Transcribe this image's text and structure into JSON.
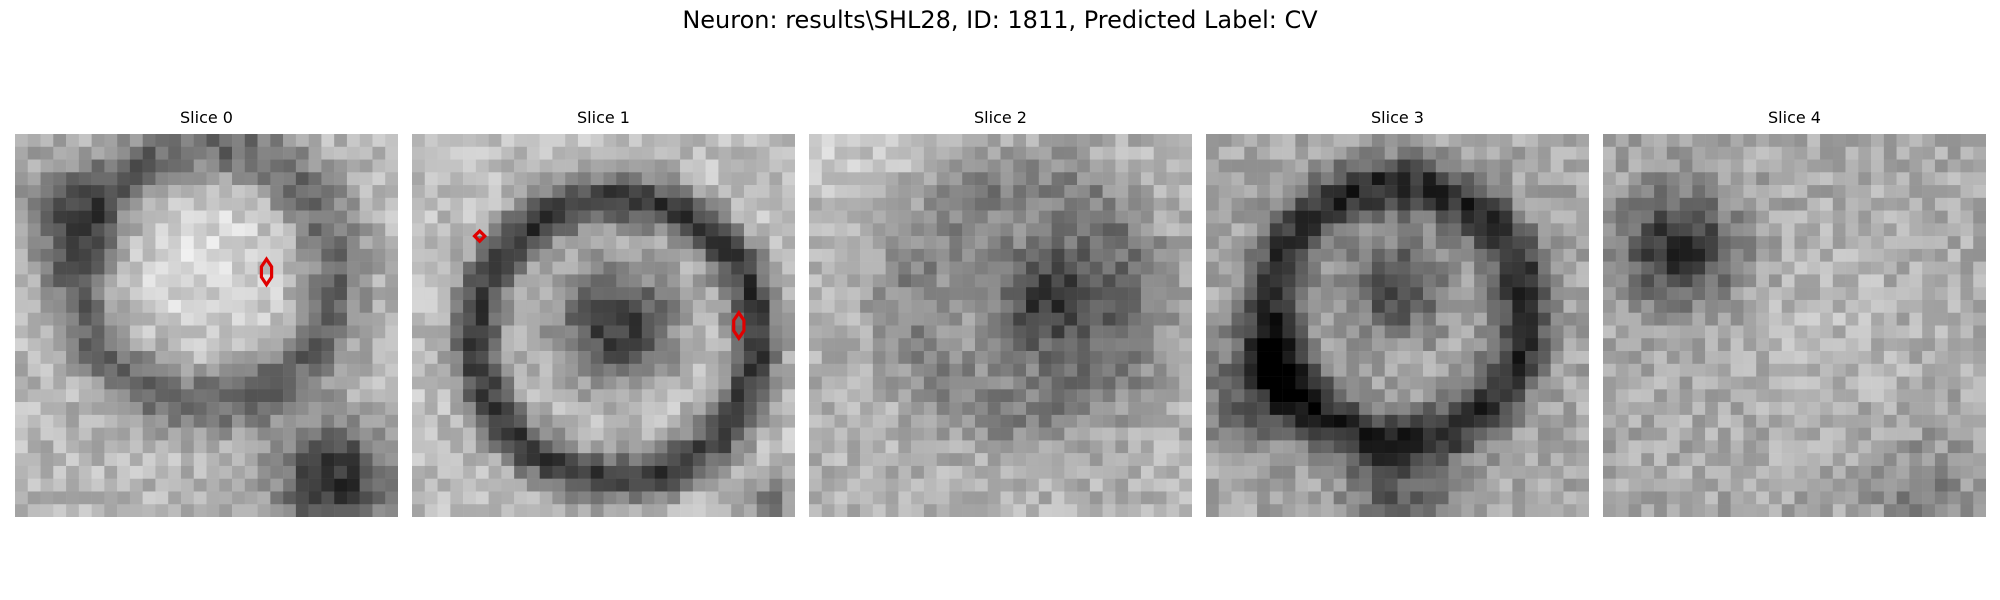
{
  "figure": {
    "suptitle": "Neuron: results\\SHL28, ID: 1811, Predicted Label: CV",
    "panels": [
      {
        "title": "Slice 0"
      },
      {
        "title": "Slice 1"
      },
      {
        "title": "Slice 2"
      },
      {
        "title": "Slice 3"
      },
      {
        "title": "Slice 4"
      }
    ],
    "colormap": "gray",
    "marker_color": "#e00000"
  }
}
